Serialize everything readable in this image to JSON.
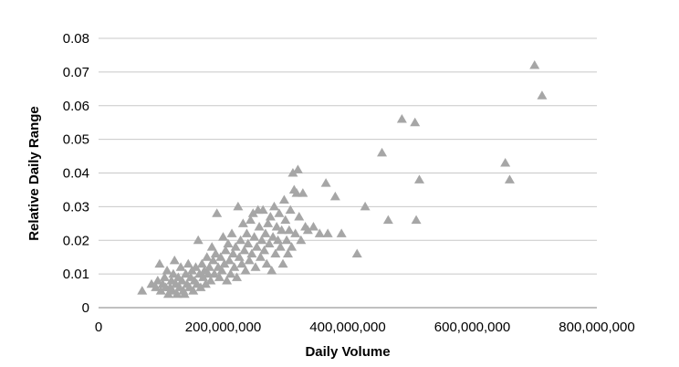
{
  "chart_data": {
    "type": "scatter",
    "xlabel": "Daily Volume",
    "ylabel": "Relative Daily Range",
    "xlim": [
      0,
      800000000
    ],
    "ylim": [
      0,
      0.08
    ],
    "x_ticks": [
      0,
      200000000,
      400000000,
      600000000,
      800000000
    ],
    "x_tick_labels": [
      "0",
      "200,000,000",
      "400,000,000",
      "600,000,000",
      "800,000,000"
    ],
    "y_ticks": [
      0,
      0.01,
      0.02,
      0.03,
      0.04,
      0.05,
      0.06,
      0.07,
      0.08
    ],
    "y_tick_labels": [
      "0",
      "0.01",
      "0.02",
      "0.03",
      "0.04",
      "0.05",
      "0.06",
      "0.07",
      "0.08"
    ],
    "grid": "horizontal",
    "marker": "triangle",
    "marker_color": "#a6a6a6",
    "grid_color": "#c8c8c8",
    "points": [
      [
        70000000,
        0.005
      ],
      [
        85000000,
        0.007
      ],
      [
        92000000,
        0.006
      ],
      [
        95000000,
        0.008
      ],
      [
        98000000,
        0.013
      ],
      [
        100000000,
        0.005
      ],
      [
        103000000,
        0.007
      ],
      [
        106000000,
        0.009
      ],
      [
        108000000,
        0.006
      ],
      [
        110000000,
        0.011
      ],
      [
        112000000,
        0.004
      ],
      [
        115000000,
        0.006
      ],
      [
        117000000,
        0.008
      ],
      [
        119000000,
        0.005
      ],
      [
        120000000,
        0.01
      ],
      [
        122000000,
        0.014
      ],
      [
        124000000,
        0.007
      ],
      [
        126000000,
        0.004
      ],
      [
        128000000,
        0.009
      ],
      [
        130000000,
        0.006
      ],
      [
        132000000,
        0.012
      ],
      [
        134000000,
        0.008
      ],
      [
        136000000,
        0.005
      ],
      [
        138000000,
        0.004
      ],
      [
        140000000,
        0.01
      ],
      [
        142000000,
        0.007
      ],
      [
        144000000,
        0.013
      ],
      [
        146000000,
        0.006
      ],
      [
        148000000,
        0.009
      ],
      [
        150000000,
        0.011
      ],
      [
        152000000,
        0.005
      ],
      [
        154000000,
        0.008
      ],
      [
        156000000,
        0.012
      ],
      [
        158000000,
        0.007
      ],
      [
        160000000,
        0.02
      ],
      [
        162000000,
        0.01
      ],
      [
        164000000,
        0.006
      ],
      [
        166000000,
        0.013
      ],
      [
        168000000,
        0.009
      ],
      [
        170000000,
        0.011
      ],
      [
        172000000,
        0.007
      ],
      [
        174000000,
        0.015
      ],
      [
        176000000,
        0.01
      ],
      [
        178000000,
        0.012
      ],
      [
        180000000,
        0.008
      ],
      [
        182000000,
        0.018
      ],
      [
        184000000,
        0.014
      ],
      [
        186000000,
        0.01
      ],
      [
        188000000,
        0.016
      ],
      [
        190000000,
        0.028
      ],
      [
        192000000,
        0.012
      ],
      [
        194000000,
        0.009
      ],
      [
        196000000,
        0.015
      ],
      [
        198000000,
        0.011
      ],
      [
        200000000,
        0.021
      ],
      [
        202000000,
        0.013
      ],
      [
        204000000,
        0.017
      ],
      [
        206000000,
        0.008
      ],
      [
        208000000,
        0.019
      ],
      [
        210000000,
        0.014
      ],
      [
        212000000,
        0.01
      ],
      [
        214000000,
        0.022
      ],
      [
        216000000,
        0.016
      ],
      [
        218000000,
        0.012
      ],
      [
        220000000,
        0.018
      ],
      [
        222000000,
        0.009
      ],
      [
        224000000,
        0.03
      ],
      [
        226000000,
        0.015
      ],
      [
        228000000,
        0.02
      ],
      [
        230000000,
        0.013
      ],
      [
        232000000,
        0.025
      ],
      [
        234000000,
        0.017
      ],
      [
        236000000,
        0.011
      ],
      [
        238000000,
        0.022
      ],
      [
        240000000,
        0.019
      ],
      [
        242000000,
        0.014
      ],
      [
        244000000,
        0.026
      ],
      [
        246000000,
        0.016
      ],
      [
        248000000,
        0.028
      ],
      [
        250000000,
        0.021
      ],
      [
        252000000,
        0.012
      ],
      [
        254000000,
        0.018
      ],
      [
        256000000,
        0.029
      ],
      [
        258000000,
        0.024
      ],
      [
        260000000,
        0.015
      ],
      [
        262000000,
        0.02
      ],
      [
        264000000,
        0.029
      ],
      [
        266000000,
        0.017
      ],
      [
        268000000,
        0.022
      ],
      [
        270000000,
        0.013
      ],
      [
        272000000,
        0.025
      ],
      [
        274000000,
        0.019
      ],
      [
        276000000,
        0.027
      ],
      [
        278000000,
        0.011
      ],
      [
        280000000,
        0.021
      ],
      [
        282000000,
        0.03
      ],
      [
        284000000,
        0.016
      ],
      [
        286000000,
        0.024
      ],
      [
        288000000,
        0.02
      ],
      [
        290000000,
        0.028
      ],
      [
        292000000,
        0.018
      ],
      [
        294000000,
        0.023
      ],
      [
        296000000,
        0.013
      ],
      [
        298000000,
        0.032
      ],
      [
        300000000,
        0.026
      ],
      [
        302000000,
        0.02
      ],
      [
        304000000,
        0.016
      ],
      [
        306000000,
        0.023
      ],
      [
        308000000,
        0.029
      ],
      [
        310000000,
        0.018
      ],
      [
        312000000,
        0.04
      ],
      [
        314000000,
        0.035
      ],
      [
        316000000,
        0.022
      ],
      [
        318000000,
        0.034
      ],
      [
        320000000,
        0.041
      ],
      [
        322000000,
        0.027
      ],
      [
        325000000,
        0.02
      ],
      [
        328000000,
        0.034
      ],
      [
        332000000,
        0.024
      ],
      [
        336000000,
        0.023
      ],
      [
        345000000,
        0.024
      ],
      [
        355000000,
        0.022
      ],
      [
        365000000,
        0.037
      ],
      [
        368000000,
        0.022
      ],
      [
        380000000,
        0.033
      ],
      [
        390000000,
        0.022
      ],
      [
        415000000,
        0.016
      ],
      [
        428000000,
        0.03
      ],
      [
        455000000,
        0.046
      ],
      [
        465000000,
        0.026
      ],
      [
        487000000,
        0.056
      ],
      [
        508000000,
        0.055
      ],
      [
        510000000,
        0.026
      ],
      [
        515000000,
        0.038
      ],
      [
        653000000,
        0.043
      ],
      [
        660000000,
        0.038
      ],
      [
        700000000,
        0.072
      ],
      [
        712000000,
        0.063
      ]
    ]
  }
}
